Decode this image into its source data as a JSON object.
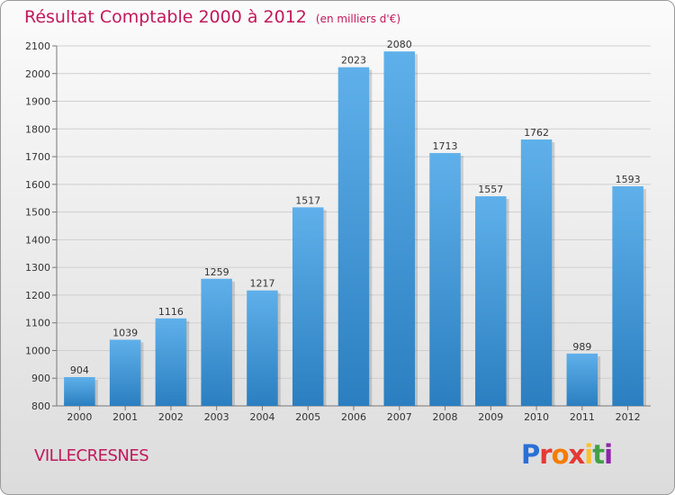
{
  "header": {
    "title": "Résultat Comptable 2000 à 2012",
    "unit": "(en milliers d'€)"
  },
  "city": "VILLECRESNES",
  "logo": {
    "letters": [
      "P",
      "r",
      "o",
      "x",
      "i",
      "t",
      "i"
    ]
  },
  "colors": {
    "bar_light": "#5fb0ea",
    "bar_dark": "#2b7fc0",
    "title": "#c2185b",
    "grid": "#cfcfcf"
  },
  "chart_data": {
    "type": "bar",
    "title": "Résultat Comptable 2000 à 2012",
    "subtitle": "(en milliers d'€)",
    "xlabel": "",
    "ylabel": "",
    "categories": [
      "2000",
      "2001",
      "2002",
      "2003",
      "2004",
      "2005",
      "2006",
      "2007",
      "2008",
      "2009",
      "2010",
      "2011",
      "2012"
    ],
    "values": [
      904,
      1039,
      1116,
      1259,
      1217,
      1517,
      2023,
      2080,
      1713,
      1557,
      1762,
      989,
      1593
    ],
    "ylim": [
      800,
      2100
    ],
    "yticks": [
      800,
      900,
      1000,
      1100,
      1200,
      1300,
      1400,
      1500,
      1600,
      1700,
      1800,
      1900,
      2000,
      2100
    ],
    "grid": true,
    "legend": "none"
  }
}
